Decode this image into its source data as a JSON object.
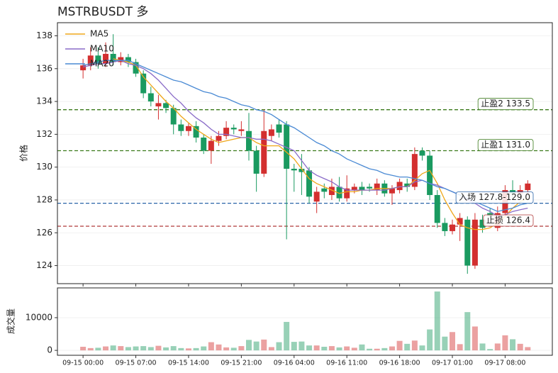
{
  "chart_data": {
    "type": "candlestick",
    "title": "MSTRBUSDT  多",
    "ylabel": "价格",
    "categories": [
      "09-15 00:00",
      null,
      null,
      null,
      null,
      null,
      null,
      "09-15 07:00",
      null,
      null,
      null,
      null,
      null,
      null,
      "09-15 14:00",
      null,
      null,
      null,
      null,
      null,
      null,
      "09-15 21:00",
      null,
      null,
      null,
      null,
      null,
      null,
      "09-16 04:00",
      null,
      null,
      null,
      null,
      null,
      null,
      "09-16 11:00",
      null,
      null,
      null,
      null,
      null,
      null,
      "09-16 18:00",
      null,
      null,
      null,
      null,
      null,
      null,
      "09-17 01:00",
      null,
      null,
      null,
      null,
      null,
      null,
      "09-17 08:00",
      null,
      null,
      null
    ],
    "open": [
      135.9,
      136.2,
      136.8,
      136.3,
      136.9,
      136.4,
      136.7,
      136.4,
      135.7,
      134.5,
      133.7,
      133.9,
      133.6,
      132.6,
      132.2,
      132.5,
      131.8,
      131.0,
      131.6,
      131.9,
      132.4,
      132.2,
      132.2,
      131.0,
      129.6,
      131.9,
      132.6,
      132.6,
      129.9,
      129.9,
      129.8,
      127.9,
      128.7,
      128.3,
      128.8,
      128.1,
      128.6,
      128.8,
      128.8,
      128.6,
      129.0,
      128.4,
      128.6,
      129.0,
      128.8,
      131.0,
      130.7,
      128.3,
      126.6,
      126.1,
      126.5,
      126.8,
      124.0,
      126.8,
      127.2,
      126.3,
      127.2,
      128.6,
      128.4,
      128.6
    ],
    "high": [
      136.6,
      137.3,
      137.3,
      137.6,
      138.1,
      137.0,
      136.9,
      136.6,
      135.9,
      134.9,
      134.4,
      134.1,
      133.8,
      132.9,
      132.7,
      132.8,
      132.0,
      131.9,
      132.2,
      132.8,
      132.6,
      132.8,
      133.3,
      131.3,
      133.5,
      132.6,
      132.9,
      132.8,
      130.2,
      130.8,
      130.0,
      128.8,
      129.0,
      129.3,
      129.4,
      129.5,
      129.0,
      129.1,
      129.0,
      129.3,
      129.2,
      128.9,
      129.3,
      129.3,
      131.2,
      131.2,
      131.0,
      128.6,
      126.9,
      126.8,
      127.2,
      127.0,
      127.2,
      127.1,
      127.5,
      127.6,
      128.9,
      129.2,
      128.9,
      129.2
    ],
    "low": [
      135.4,
      135.9,
      136.0,
      136.1,
      136.2,
      136.2,
      136.1,
      135.5,
      134.2,
      133.7,
      132.9,
      133.3,
      132.0,
      131.9,
      131.9,
      131.5,
      130.8,
      130.2,
      131.3,
      131.7,
      132.0,
      131.9,
      130.4,
      128.5,
      129.4,
      131.6,
      131.8,
      125.6,
      128.5,
      128.3,
      127.8,
      127.2,
      128.1,
      128.0,
      127.9,
      127.9,
      128.4,
      128.3,
      128.5,
      128.3,
      128.2,
      127.7,
      128.4,
      128.5,
      128.6,
      130.4,
      128.0,
      126.3,
      125.8,
      125.9,
      125.5,
      123.5,
      123.8,
      126.0,
      126.8,
      126.1,
      127.0,
      128.1,
      128.2,
      128.3
    ],
    "close": [
      136.2,
      136.8,
      136.3,
      136.9,
      136.4,
      136.7,
      136.4,
      135.7,
      134.5,
      134.0,
      133.9,
      133.6,
      132.6,
      132.2,
      132.5,
      131.8,
      131.0,
      131.6,
      131.9,
      132.4,
      132.3,
      132.3,
      131.0,
      129.6,
      132.2,
      132.3,
      132.1,
      129.9,
      129.8,
      129.7,
      128.2,
      128.5,
      128.5,
      128.8,
      128.1,
      128.7,
      128.8,
      128.6,
      128.7,
      129.0,
      128.4,
      128.7,
      129.1,
      128.8,
      130.8,
      130.7,
      128.3,
      126.6,
      126.1,
      126.5,
      126.9,
      124.0,
      126.8,
      126.3,
      127.0,
      127.2,
      128.6,
      128.4,
      128.6,
      129.0
    ],
    "up_color": "#d32f2f",
    "down_color": "#1a9a60",
    "ma": [
      {
        "name": "MA5",
        "color": "#efa71a",
        "values": [
          null,
          null,
          null,
          null,
          136.6,
          136.5,
          136.4,
          136.2,
          135.5,
          135.0,
          134.5,
          134.0,
          133.6,
          133.1,
          132.7,
          132.3,
          132.0,
          131.7,
          131.5,
          131.6,
          131.7,
          131.8,
          131.8,
          131.5,
          131.3,
          131.3,
          131.3,
          130.9,
          130.5,
          129.9,
          129.3,
          129.0,
          128.8,
          128.6,
          128.4,
          128.5,
          128.5,
          128.6,
          128.6,
          128.7,
          128.7,
          128.7,
          128.8,
          128.8,
          129.2,
          129.6,
          129.8,
          129.0,
          128.0,
          127.2,
          126.5,
          126.3,
          126.2,
          126.2,
          126.3,
          126.6,
          127.0,
          127.5,
          127.9,
          128.1
        ]
      },
      {
        "name": "MA10",
        "color": "#8a6cc8",
        "values": [
          136.1,
          136.2,
          136.3,
          136.3,
          136.4,
          136.5,
          136.3,
          136.2,
          136.0,
          135.7,
          135.3,
          134.8,
          134.3,
          133.9,
          133.4,
          133.0,
          132.7,
          132.3,
          132.0,
          132.0,
          131.9,
          131.8,
          131.8,
          131.7,
          131.7,
          131.6,
          131.4,
          131.2,
          131.0,
          130.4,
          129.8,
          129.5,
          129.3,
          129.1,
          128.8,
          128.6,
          128.6,
          128.6,
          128.6,
          128.6,
          128.6,
          128.7,
          128.8,
          128.8,
          129.1,
          129.2,
          129.0,
          128.9,
          128.7,
          128.5,
          128.3,
          128.0,
          127.8,
          127.5,
          127.3,
          127.0,
          127.1,
          127.3,
          127.4,
          127.5
        ]
      },
      {
        "name": "MA20",
        "color": "#4a8ad4",
        "values": [
          136.2,
          136.3,
          136.4,
          136.5,
          136.5,
          136.5,
          136.5,
          136.3,
          136.1,
          135.9,
          135.7,
          135.5,
          135.3,
          135.2,
          135.0,
          134.8,
          134.6,
          134.5,
          134.3,
          134.2,
          134.0,
          133.8,
          133.7,
          133.5,
          133.4,
          133.2,
          132.9,
          132.6,
          132.4,
          132.1,
          131.8,
          131.5,
          131.3,
          131.0,
          130.8,
          130.5,
          130.3,
          130.1,
          129.9,
          129.8,
          129.6,
          129.5,
          129.4,
          129.4,
          129.3,
          129.2,
          129.0,
          128.8,
          128.7,
          128.5,
          128.3,
          128.1,
          127.9,
          127.7,
          127.5,
          127.3,
          127.4,
          127.5,
          127.7,
          127.8
        ]
      }
    ],
    "levels": [
      {
        "label": "止盈2 133.5",
        "value": 133.5,
        "color": "#3a7a1a"
      },
      {
        "label": "止盈1 131.0",
        "value": 131.0,
        "color": "#3a7a1a"
      },
      {
        "label": "入场 127.8-129.0",
        "value": 127.8,
        "color": "#2a64a8"
      },
      {
        "label": "止损 126.4",
        "value": 126.4,
        "color": "#b03a3a"
      }
    ],
    "ylim": [
      122.9,
      138.8
    ],
    "yticks": [
      124,
      126,
      128,
      130,
      132,
      134,
      136,
      138
    ],
    "grid": true,
    "volume": {
      "ylabel": "成交量",
      "values": [
        1100,
        700,
        800,
        1200,
        1500,
        1300,
        1000,
        1200,
        1300,
        1000,
        1400,
        900,
        1300,
        700,
        600,
        700,
        1200,
        2500,
        1800,
        900,
        800,
        1300,
        3200,
        2700,
        3300,
        1000,
        2500,
        8700,
        2600,
        2700,
        1500,
        1500,
        1100,
        1300,
        900,
        1200,
        800,
        1800,
        500,
        500,
        700,
        1200,
        2900,
        2000,
        3000,
        1500,
        6400,
        18000,
        4200,
        5600,
        1900,
        11700,
        7300,
        2100,
        400,
        2100,
        4600,
        3400,
        2000,
        1000
      ],
      "ylim": [
        -1500,
        19100
      ],
      "yticks": [
        0,
        10000
      ]
    }
  }
}
